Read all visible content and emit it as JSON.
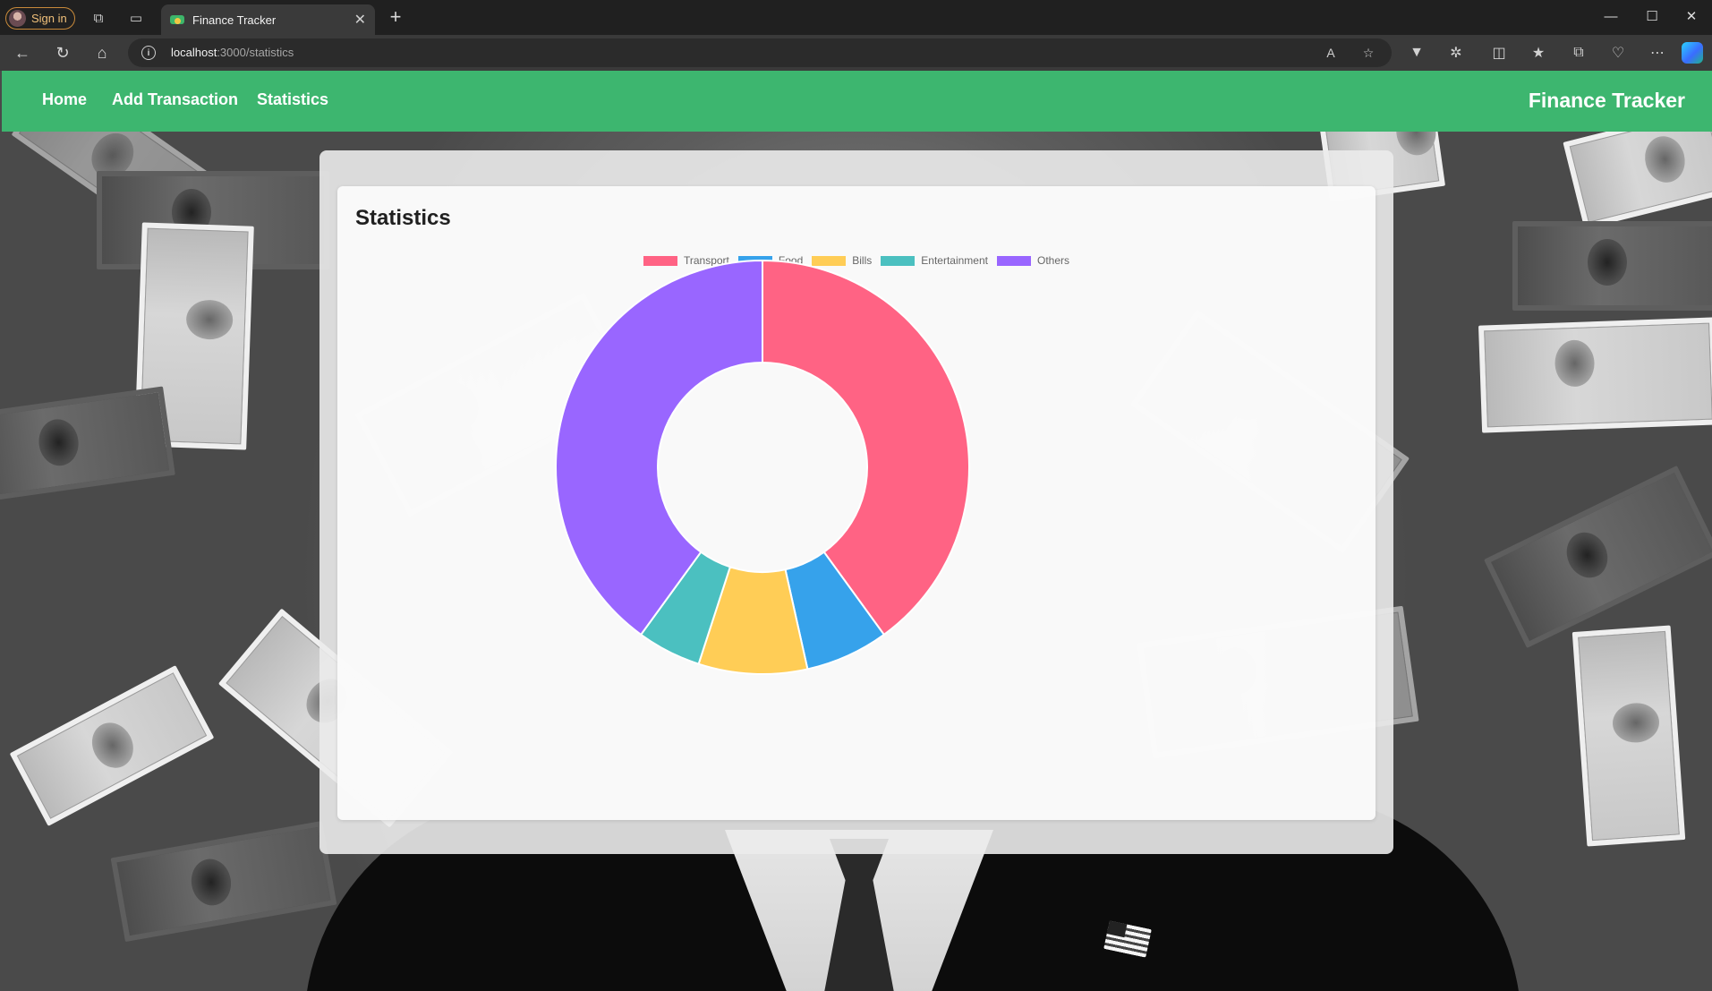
{
  "browser": {
    "profile_label": "Sign in",
    "tab_title": "Finance Tracker",
    "url_host": "localhost",
    "url_path": ":3000/statistics"
  },
  "nav": {
    "links": [
      {
        "label": "Home"
      },
      {
        "label": "Add Transaction"
      },
      {
        "label": "Statistics"
      }
    ],
    "brand": "Finance Tracker"
  },
  "main": {
    "title": "Statistics"
  },
  "colors": {
    "navbar": "#3db66f",
    "transport": "#ff6384",
    "food": "#36a2eb",
    "bills": "#ffcd56",
    "entertainment": "#4bc0c0",
    "others": "#9966ff"
  },
  "chart_data": {
    "type": "doughnut",
    "legend_position": "top",
    "labels": [
      "Transport",
      "Food",
      "Bills",
      "Entertainment",
      "Others"
    ],
    "values": [
      40,
      6.5,
      8.5,
      5,
      40
    ],
    "colors": [
      "#ff6384",
      "#36a2eb",
      "#ffcd56",
      "#4bc0c0",
      "#9966ff"
    ]
  }
}
